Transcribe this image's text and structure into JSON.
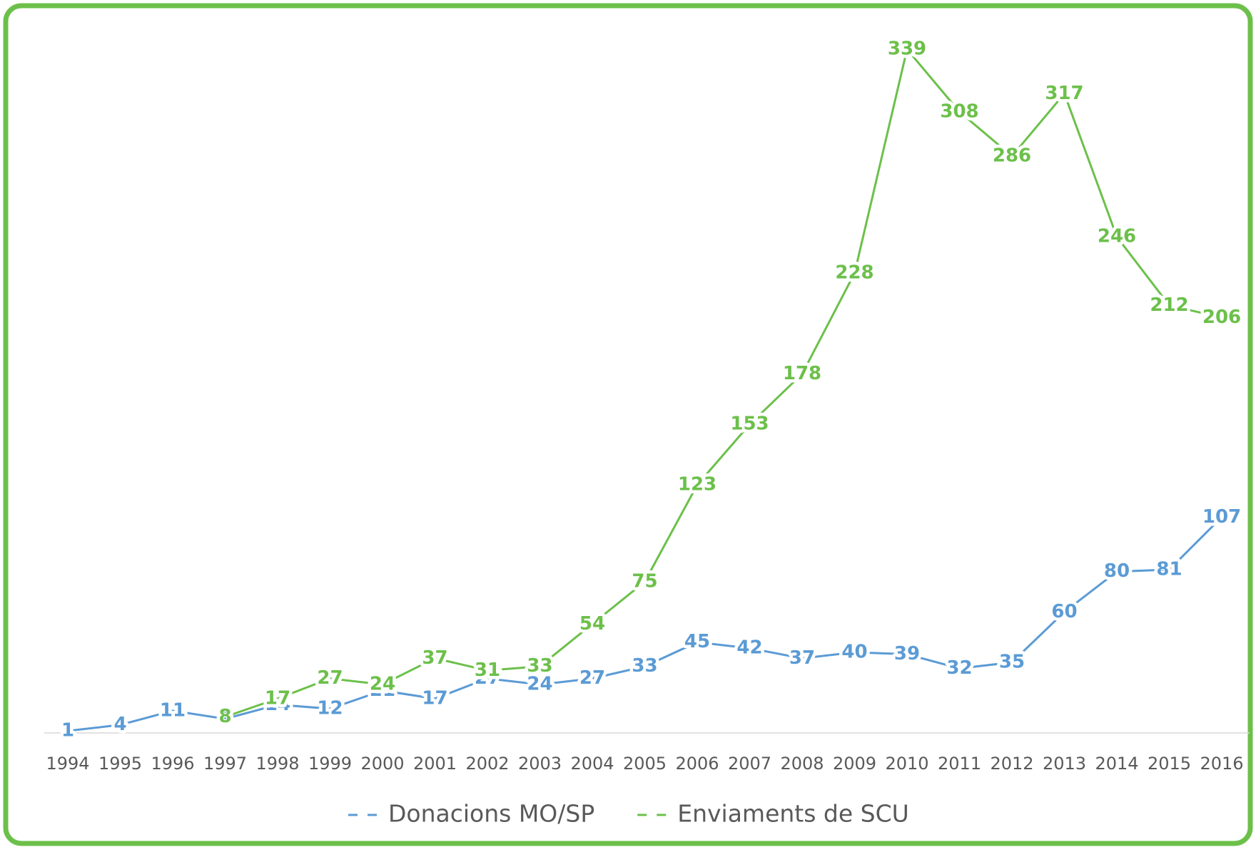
{
  "chart_data": {
    "type": "line",
    "categories": [
      "1994",
      "1995",
      "1996",
      "1997",
      "1998",
      "1999",
      "2000",
      "2001",
      "2002",
      "2003",
      "2004",
      "2005",
      "2006",
      "2007",
      "2008",
      "2009",
      "2010",
      "2011",
      "2012",
      "2013",
      "2014",
      "2015",
      "2016"
    ],
    "series": [
      {
        "name": "Donacions MO/SP",
        "color": "#5b9bd5",
        "values": [
          1,
          4,
          11,
          7,
          14,
          12,
          21,
          17,
          27,
          24,
          27,
          33,
          45,
          42,
          37,
          40,
          39,
          32,
          35,
          60,
          80,
          81,
          107
        ]
      },
      {
        "name": "Enviaments de SCU",
        "color": "#6cc04a",
        "values": [
          null,
          null,
          null,
          8,
          17,
          27,
          24,
          37,
          31,
          33,
          54,
          75,
          123,
          153,
          178,
          228,
          339,
          308,
          286,
          317,
          246,
          212,
          206
        ]
      }
    ],
    "ylim": [
      0,
      350
    ],
    "legend": "bottom"
  }
}
